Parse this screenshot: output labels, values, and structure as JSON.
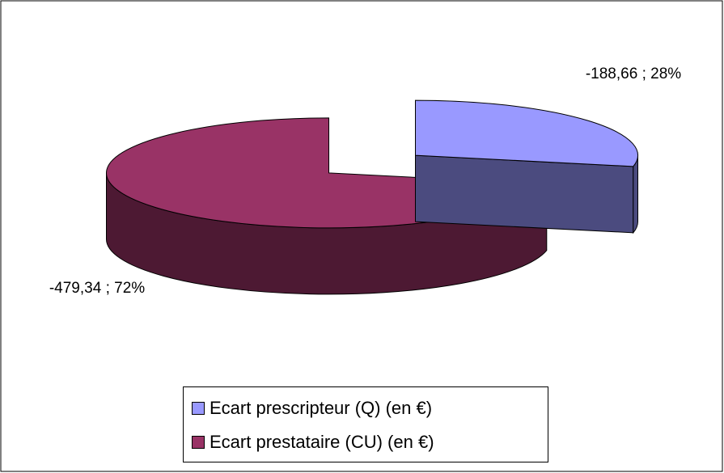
{
  "chart_data": {
    "type": "pie",
    "categories": [
      "Ecart prescripteur (Q) (en €)",
      "Ecart prestataire (CU) (en €)"
    ],
    "values": [
      -188.66,
      -479.34
    ],
    "value_labels": [
      "-188,66 ; 28%",
      "-479,34 ; 72%"
    ],
    "colors": [
      "#9999ff",
      "#993366"
    ],
    "side_colors": [
      "#4b4b7f",
      "#4d1933"
    ],
    "legend": "bottom"
  }
}
